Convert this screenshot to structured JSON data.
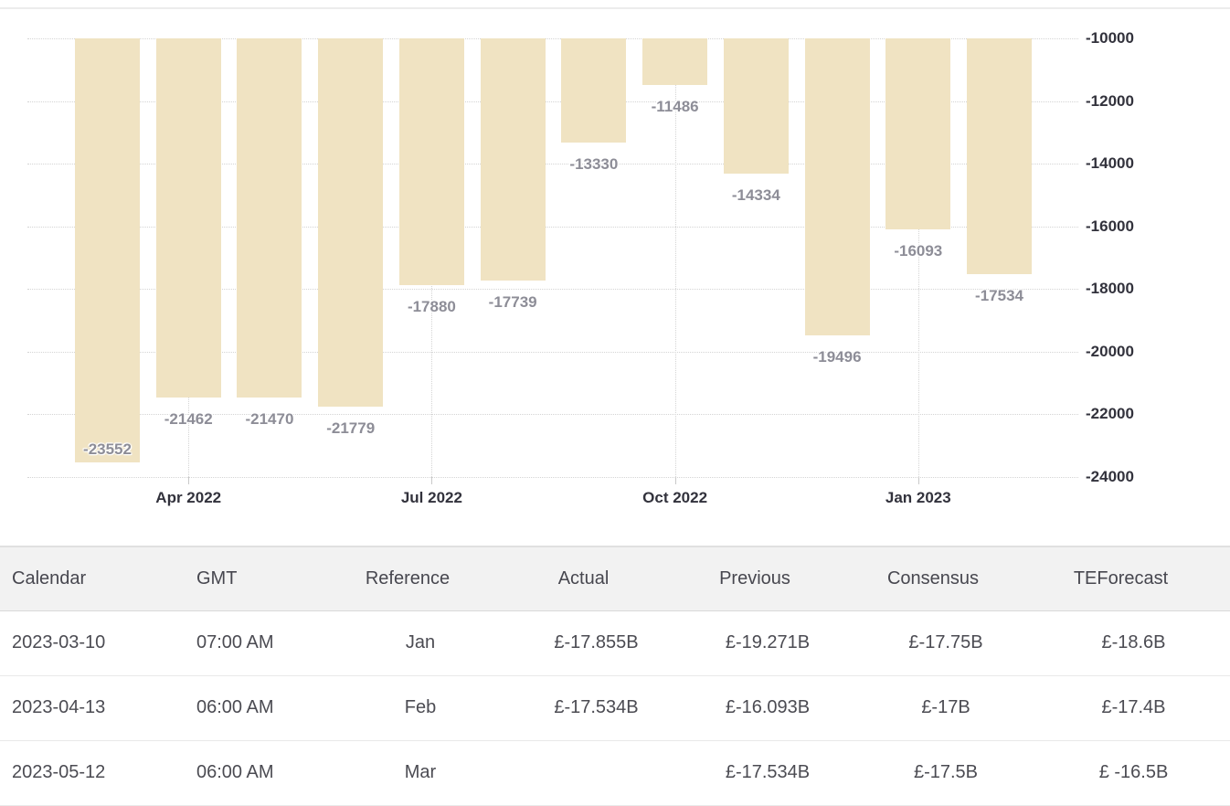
{
  "chart_data": {
    "type": "bar",
    "title": "",
    "xlabel": "",
    "ylabel": "",
    "values": [
      -23552,
      -21462,
      -21470,
      -21779,
      -17880,
      -17739,
      -13330,
      -11486,
      -14334,
      -19496,
      -16093,
      -17534
    ],
    "data_labels": [
      "-23552",
      "-21462",
      "-21470",
      "-21779",
      "-17880",
      "-17739",
      "-13330",
      "-11486",
      "-14334",
      "-19496",
      "-16093",
      "-17534"
    ],
    "x_axis": {
      "ticks": [
        {
          "label": "Apr 2022",
          "bar_index": 1
        },
        {
          "label": "Jul 2022",
          "bar_index": 4
        },
        {
          "label": "Oct 2022",
          "bar_index": 7
        },
        {
          "label": "Jan 2023",
          "bar_index": 10
        }
      ]
    },
    "y_axis": {
      "side": "right",
      "ticks": [
        -10000,
        -12000,
        -14000,
        -16000,
        -18000,
        -20000,
        -22000,
        -24000
      ]
    },
    "ylim": [
      -24000,
      -10000
    ],
    "grid": "dotted",
    "legend": "none",
    "colors": {
      "bar": "#f0e3c2",
      "data_label": "#8d8d97",
      "axis_label": "#32323c",
      "gridline": "#d4d4d4"
    }
  },
  "table": {
    "headers": [
      "Calendar",
      "GMT",
      "Reference",
      "Actual",
      "Previous",
      "Consensus",
      "TEForecast"
    ],
    "rows": [
      [
        "2023-03-10",
        "07:00 AM",
        "Jan",
        "£-17.855B",
        "£-19.271B",
        "£-17.75B",
        "£-18.6B"
      ],
      [
        "2023-04-13",
        "06:00 AM",
        "Feb",
        "£-17.534B",
        "£-16.093B",
        "£-17B",
        "£-17.4B"
      ],
      [
        "2023-05-12",
        "06:00 AM",
        "Mar",
        "",
        "£-17.534B",
        "£-17.5B",
        "£ -16.5B"
      ]
    ],
    "colors": {
      "header_bg": "#f2f2f2",
      "header_text": "#47474f",
      "cell_text": "#4b4b52",
      "border": "#e9e9e9"
    }
  }
}
